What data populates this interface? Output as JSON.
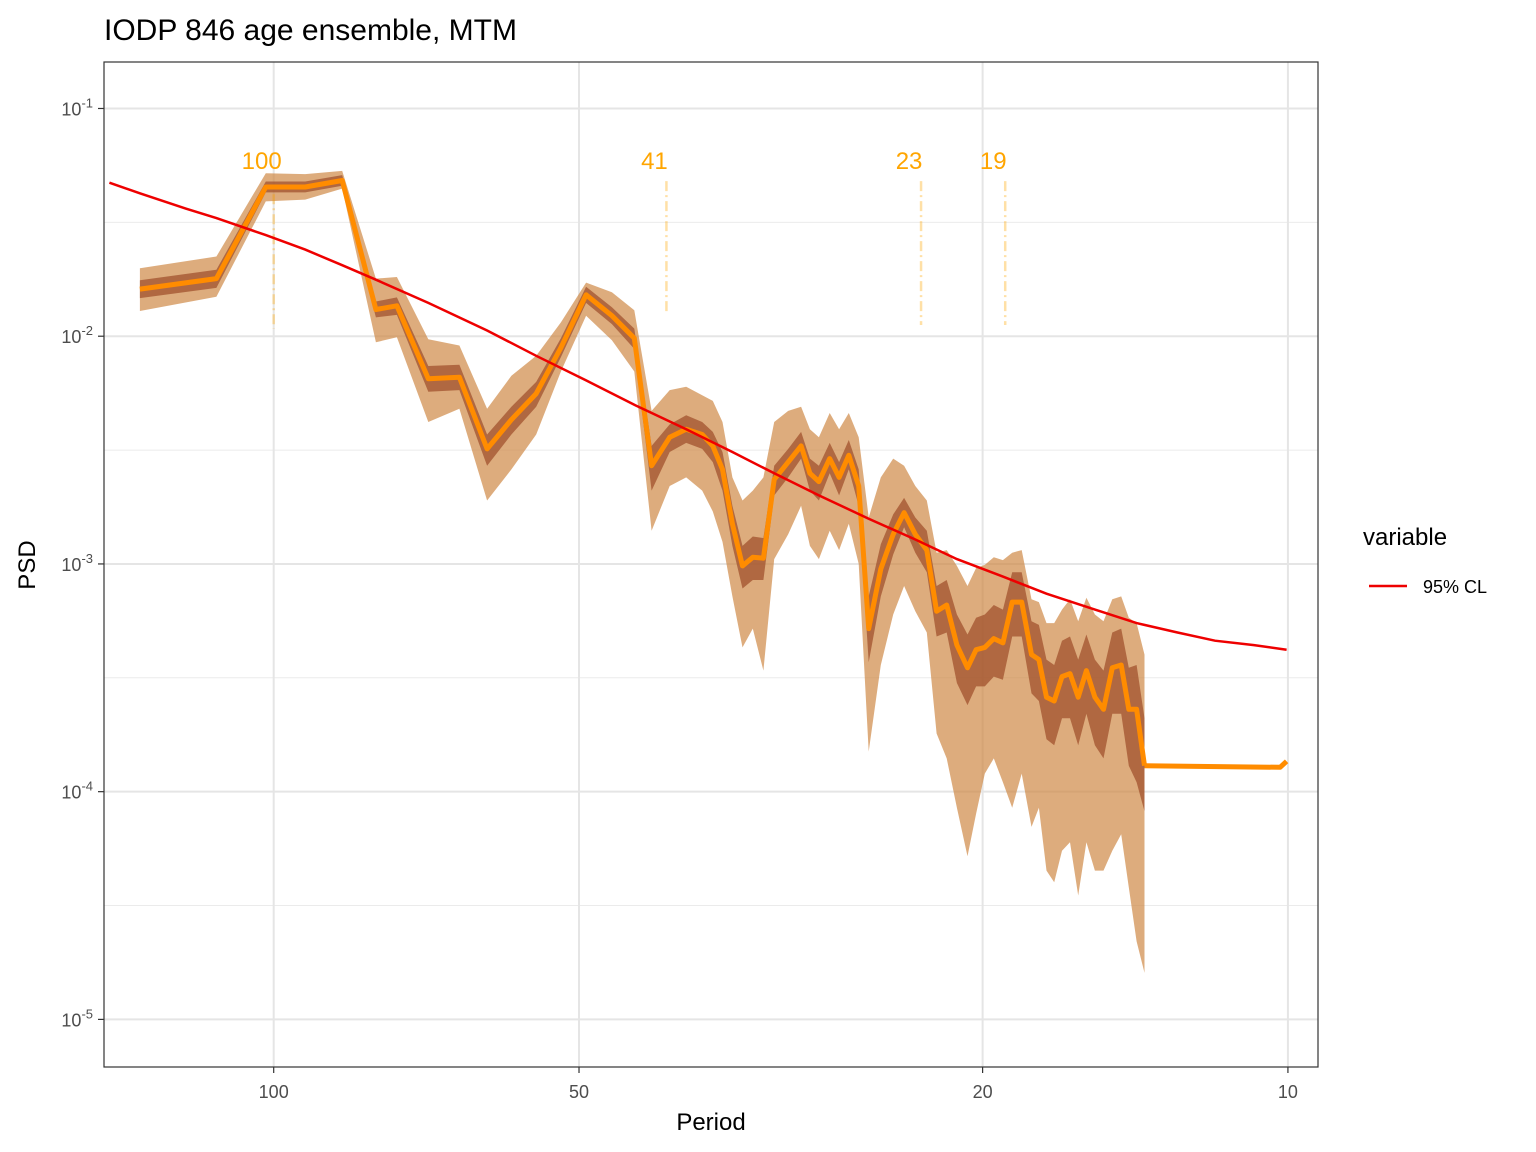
{
  "chart_data": {
    "type": "line",
    "title": "IODP 846 age ensemble, MTM",
    "xlabel": "Period",
    "ylabel": "PSD",
    "x_scale": "log-reversed",
    "y_scale": "log",
    "xlim": [
      147,
      9.34
    ],
    "ylim": [
      6.18e-06,
      0.16
    ],
    "x_ticks": [
      {
        "value": 100,
        "label": "100"
      },
      {
        "value": 50,
        "label": "50"
      },
      {
        "value": 20,
        "label": "20"
      },
      {
        "value": 10,
        "label": "10"
      }
    ],
    "y_ticks": [
      {
        "value": 0.1,
        "base": "10",
        "exp": "-1"
      },
      {
        "value": 0.01,
        "base": "10",
        "exp": "-2"
      },
      {
        "value": 0.001,
        "base": "10",
        "exp": "-3"
      },
      {
        "value": 0.0001,
        "base": "10",
        "exp": "-4"
      },
      {
        "value": 1e-05,
        "base": "10",
        "exp": "-5"
      }
    ],
    "grid": true,
    "colors": {
      "median": "#FF8C00",
      "band_inner": "#A0522D",
      "band_outer": "#CD853F",
      "cl_line": "#EE0000",
      "peak": "#FFA500"
    },
    "median": {
      "x": [
        135.5,
        113.9,
        101.8,
        93.1,
        85.6,
        79.3,
        75.6,
        70.4,
        65.6,
        61.6,
        58.3,
        55.1,
        52.1,
        49.2,
        46.4,
        44.1,
        42.4,
        40.7,
        39.2,
        37.8,
        36.9,
        36.1,
        35.3,
        34.5,
        33.7,
        32.9,
        32.1,
        31.1,
        30.2,
        29.6,
        29.0,
        28.3,
        27.7,
        27.1,
        26.5,
        25.9,
        25.2,
        24.5,
        23.9,
        23.3,
        22.7,
        22.2,
        21.7,
        21.2,
        20.7,
        20.3,
        19.9,
        19.5,
        19.1,
        18.7,
        18.3,
        17.9,
        17.6,
        17.3,
        17.0,
        16.7,
        16.4,
        16.1,
        15.8,
        15.5,
        15.2,
        14.9,
        14.6,
        14.35,
        14.1,
        13.85,
        13.6,
        13.35,
        13.1,
        12.85,
        12.6,
        12.4,
        12.2,
        12.0,
        11.8,
        11.6,
        11.4,
        11.2,
        11.0,
        10.8,
        10.6,
        10.4,
        10.2,
        10.03
      ],
      "y": [
        0.0161,
        0.0179,
        0.0452,
        0.0452,
        0.0483,
        0.0131,
        0.0136,
        0.0065,
        0.0066,
        0.0032,
        0.0043,
        0.0056,
        0.0089,
        0.0152,
        0.0123,
        0.0098,
        0.0027,
        0.0036,
        0.0039,
        0.0037,
        0.0033,
        0.0026,
        0.0015,
        0.00098,
        0.00107,
        0.00106,
        0.00235,
        0.0028,
        0.0033,
        0.0025,
        0.0023,
        0.0029,
        0.0024,
        0.003,
        0.0022,
        0.00052,
        0.00095,
        0.00135,
        0.00168,
        0.00135,
        0.00115,
        0.00062,
        0.00066,
        0.00044,
        0.00035,
        0.00042,
        0.00043,
        0.00047,
        0.00045,
        0.00068,
        0.00068,
        0.0004,
        0.00038,
        0.00026,
        0.00025,
        0.00032,
        0.00033,
        0.00026,
        0.00034,
        0.00026,
        0.00023,
        0.00035,
        0.00036,
        0.00023,
        0.00023,
        0.00013,
        0.000135,
        0.000135,
        0.000135,
        0.000135,
        0.000135,
        0.000135,
        0.000135,
        0.000135,
        0.000135,
        0.000135,
        0.000135,
        0.000135,
        0.000135,
        0.000135,
        0.000135,
        0.000135,
        0.000135,
        0.000135
      ]
    },
    "band_inner": {
      "x": [
        135.5,
        113.9,
        101.8,
        93.1,
        85.6,
        79.3,
        75.6,
        70.4,
        65.6,
        61.6,
        58.3,
        55.1,
        52.1,
        49.2,
        46.4,
        44.1,
        42.4,
        40.7,
        39.2,
        37.8,
        36.9,
        36.1,
        35.3,
        34.5,
        33.7,
        32.9,
        32.1,
        31.1,
        30.2,
        29.6,
        29.0,
        28.3,
        27.7,
        27.1,
        26.5,
        25.9,
        25.2,
        24.5,
        23.9,
        23.3,
        22.7,
        22.2,
        21.7,
        21.2,
        20.7,
        20.3,
        19.9,
        19.5,
        19.1,
        18.7,
        18.3,
        17.9,
        17.6,
        17.3,
        17.0,
        16.7,
        16.4,
        16.1,
        15.8,
        15.5,
        15.2,
        14.9,
        14.6,
        14.35,
        14.1,
        13.85
      ],
      "low": [
        0.0147,
        0.0163,
        0.0428,
        0.0428,
        0.0458,
        0.0121,
        0.0124,
        0.0057,
        0.0058,
        0.0027,
        0.0037,
        0.0049,
        0.0081,
        0.014,
        0.0113,
        0.0088,
        0.0021,
        0.0031,
        0.0034,
        0.0032,
        0.0028,
        0.0021,
        0.0012,
        0.00078,
        0.00085,
        0.00085,
        0.002,
        0.0024,
        0.0029,
        0.0021,
        0.0019,
        0.0025,
        0.002,
        0.0026,
        0.0018,
        0.00037,
        0.00072,
        0.0011,
        0.00145,
        0.00112,
        0.00092,
        0.00048,
        0.0005,
        0.0003,
        0.00024,
        0.00029,
        0.00029,
        0.00032,
        0.00031,
        0.00048,
        0.00048,
        0.00027,
        0.00025,
        0.00017,
        0.00016,
        0.00021,
        0.00021,
        0.00016,
        0.00022,
        0.00016,
        0.00014,
        0.00022,
        0.00022,
        0.00013,
        0.00011,
        8.2e-05
      ],
      "high": [
        0.0176,
        0.0196,
        0.0478,
        0.0478,
        0.051,
        0.0142,
        0.0148,
        0.0074,
        0.0075,
        0.0037,
        0.0049,
        0.0063,
        0.0098,
        0.0165,
        0.0134,
        0.0108,
        0.0033,
        0.0041,
        0.0045,
        0.0042,
        0.0038,
        0.0031,
        0.0018,
        0.0012,
        0.00132,
        0.0013,
        0.0027,
        0.0032,
        0.0038,
        0.0029,
        0.0027,
        0.0034,
        0.0028,
        0.0035,
        0.0026,
        0.00072,
        0.00122,
        0.00165,
        0.00195,
        0.0016,
        0.0014,
        0.0008,
        0.00085,
        0.0006,
        0.00049,
        0.00058,
        0.0006,
        0.00066,
        0.00063,
        0.00092,
        0.00092,
        0.00056,
        0.00054,
        0.00038,
        0.00036,
        0.00046,
        0.00048,
        0.00038,
        0.00049,
        0.00038,
        0.00034,
        0.0005,
        0.00052,
        0.00035,
        0.00036,
        0.00021
      ]
    },
    "band_outer": {
      "x": [
        135.5,
        113.9,
        101.8,
        93.1,
        85.6,
        79.3,
        75.6,
        70.4,
        65.6,
        61.6,
        58.3,
        55.1,
        52.1,
        49.2,
        46.4,
        44.1,
        42.4,
        40.7,
        39.2,
        37.8,
        36.9,
        36.1,
        35.3,
        34.5,
        33.7,
        32.9,
        32.1,
        31.1,
        30.2,
        29.6,
        29.0,
        28.3,
        27.7,
        27.1,
        26.5,
        25.9,
        25.2,
        24.5,
        23.9,
        23.3,
        22.7,
        22.2,
        21.7,
        21.2,
        20.7,
        20.3,
        19.9,
        19.5,
        19.1,
        18.7,
        18.3,
        17.9,
        17.6,
        17.3,
        17.0,
        16.7,
        16.4,
        16.1,
        15.8,
        15.5,
        15.2,
        14.9,
        14.6,
        14.35,
        14.1,
        13.85
      ],
      "low": [
        0.0129,
        0.0149,
        0.0391,
        0.0398,
        0.0445,
        0.0094,
        0.0099,
        0.0042,
        0.0048,
        0.0019,
        0.0026,
        0.0037,
        0.007,
        0.0123,
        0.0096,
        0.007,
        0.0014,
        0.0022,
        0.0024,
        0.0021,
        0.0017,
        0.00125,
        0.00072,
        0.00043,
        0.00052,
        0.00034,
        0.00105,
        0.00135,
        0.0018,
        0.0012,
        0.00105,
        0.0014,
        0.00115,
        0.0015,
        0.001,
        0.00015,
        0.00036,
        0.0006,
        0.0008,
        0.00062,
        0.0005,
        0.00018,
        0.00014,
        8.5e-05,
        5.2e-05,
        8e-05,
        0.00012,
        0.00014,
        0.00011,
        8.5e-05,
        0.00012,
        7e-05,
        8.5e-05,
        4.5e-05,
        4e-05,
        5.5e-05,
        6e-05,
        3.5e-05,
        6e-05,
        4.5e-05,
        4.5e-05,
        5.5e-05,
        6.5e-05,
        3.8e-05,
        2.2e-05,
        1.6e-05
      ],
      "high": [
        0.0199,
        0.0224,
        0.052,
        0.0515,
        0.0532,
        0.0179,
        0.0182,
        0.0097,
        0.0091,
        0.0048,
        0.0067,
        0.0082,
        0.0115,
        0.0172,
        0.0156,
        0.013,
        0.0047,
        0.0058,
        0.006,
        0.0055,
        0.0052,
        0.0042,
        0.0024,
        0.0019,
        0.0021,
        0.0024,
        0.0042,
        0.0047,
        0.0049,
        0.0039,
        0.0036,
        0.0046,
        0.0039,
        0.0046,
        0.0036,
        0.0016,
        0.0024,
        0.0029,
        0.0027,
        0.0022,
        0.0019,
        0.00112,
        0.00115,
        0.00098,
        0.0008,
        0.00096,
        0.00099,
        0.00107,
        0.00104,
        0.00112,
        0.00115,
        0.0007,
        0.00068,
        0.00055,
        0.00055,
        0.00063,
        0.0007,
        0.00056,
        0.00071,
        0.0006,
        0.00056,
        0.0007,
        0.00072,
        0.00058,
        0.00055,
        0.0004
      ]
    },
    "cl_95": {
      "name": "95% CL",
      "x": [
        145.2,
        135.5,
        122.0,
        113.9,
        101.8,
        93.1,
        85.6,
        79.3,
        70.4,
        61.6,
        55.1,
        49.2,
        44.1,
        39.2,
        35.3,
        32.1,
        29.0,
        25.9,
        23.3,
        21.2,
        19.1,
        17.3,
        15.5,
        14.1,
        12.85,
        11.8,
        10.8,
        10.03
      ],
      "y": [
        0.0472,
        0.0424,
        0.0363,
        0.033,
        0.0278,
        0.024,
        0.0205,
        0.0177,
        0.014,
        0.0106,
        0.0082,
        0.0064,
        0.005,
        0.0039,
        0.0031,
        0.0025,
        0.002,
        0.00158,
        0.00128,
        0.00105,
        0.00088,
        0.00074,
        0.00063,
        0.00055,
        0.0005,
        0.00046,
        0.00044,
        0.00042
      ]
    },
    "peaks": [
      {
        "period": 100,
        "label": "100",
        "y_bottom": 0.0108,
        "y_top": 0.042
      },
      {
        "period": 41,
        "label": "41",
        "y_bottom": 0.0128,
        "y_top": 0.048
      },
      {
        "period": 23,
        "label": "23",
        "y_bottom": 0.0112,
        "y_top": 0.048
      },
      {
        "period": 19,
        "label": "19",
        "y_bottom": 0.0112,
        "y_top": 0.048
      }
    ],
    "legend": {
      "title": "variable",
      "entries": [
        {
          "label": "95% CL",
          "color": "#EE0000"
        }
      ],
      "position": "right"
    }
  }
}
